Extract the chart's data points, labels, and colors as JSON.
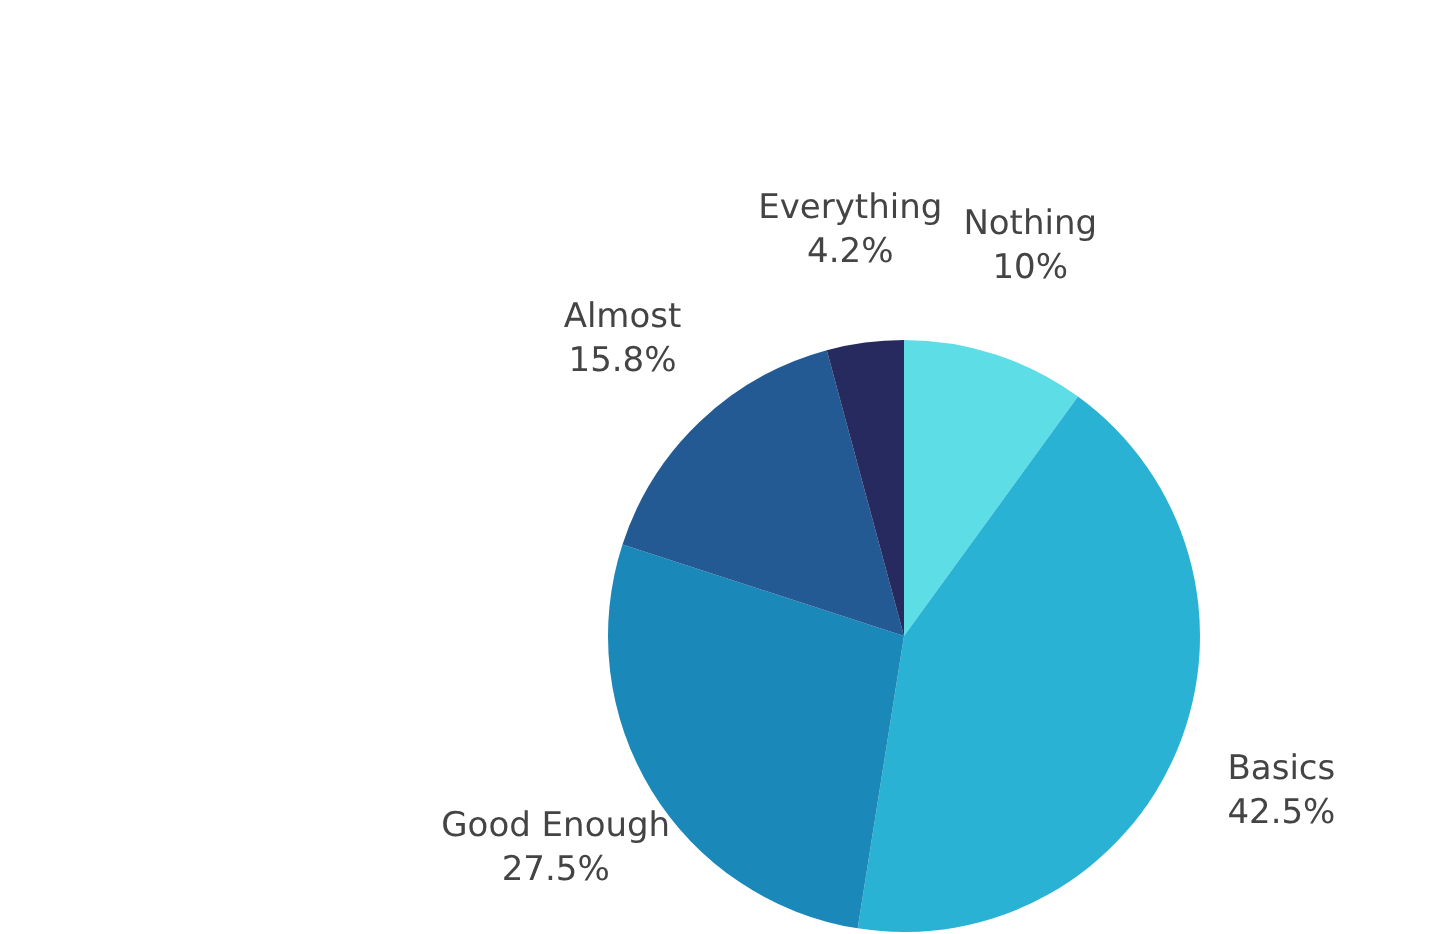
{
  "chart_data": {
    "type": "pie",
    "categories": [
      "Nothing",
      "Basics",
      "Good Enough",
      "Almost",
      "Everything"
    ],
    "values": [
      10,
      42.5,
      27.5,
      15.8,
      4.2
    ],
    "value_labels": [
      "10%",
      "42.5%",
      "27.5%",
      "15.8%",
      "4.2%"
    ],
    "colors": [
      "#5ddde6",
      "#2ab2d4",
      "#1a88b8",
      "#235a94",
      "#272a5e"
    ],
    "legend": false
  }
}
